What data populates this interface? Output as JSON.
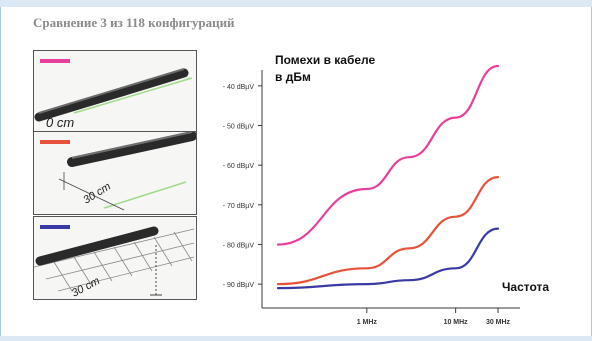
{
  "page": {
    "header": "Сравнение 3 из 118 конфигураций"
  },
  "panels": [
    {
      "label": "0 cm",
      "swatch_color": "#e83e9c"
    },
    {
      "label": "30 cm",
      "swatch_color": "#e8523c"
    },
    {
      "label": "30 cm",
      "swatch_color": "#3a3aa6"
    }
  ],
  "chart_data": {
    "type": "line",
    "title": "Помехи в кабеле в дБм",
    "xlabel": "Частота",
    "ylabel": "",
    "x_scale": "log",
    "x_ticks": [
      "1 MHz",
      "10 MHz",
      "30 MHz"
    ],
    "y_ticks": [
      "- 40 dBµV",
      "- 50 dBµV",
      "- 60 dBµV",
      "- 70 dBµV",
      "- 80 dBµV",
      "- 90 dBµV"
    ],
    "series": [
      {
        "color": "#e83e9c",
        "x": [
          0.1,
          1,
          3,
          10,
          30
        ],
        "y": [
          -80,
          -66,
          -58,
          -48,
          -35
        ]
      },
      {
        "color": "#e8523c",
        "x": [
          0.1,
          1,
          3,
          10,
          30
        ],
        "y": [
          -90,
          -86,
          -81,
          -73,
          -63
        ]
      },
      {
        "color": "#3a3aa6",
        "x": [
          0.1,
          1,
          3,
          10,
          30
        ],
        "y": [
          -91,
          -90,
          -89,
          -86,
          -76
        ]
      }
    ],
    "ylim": [
      -94,
      -36
    ],
    "grid": false
  }
}
